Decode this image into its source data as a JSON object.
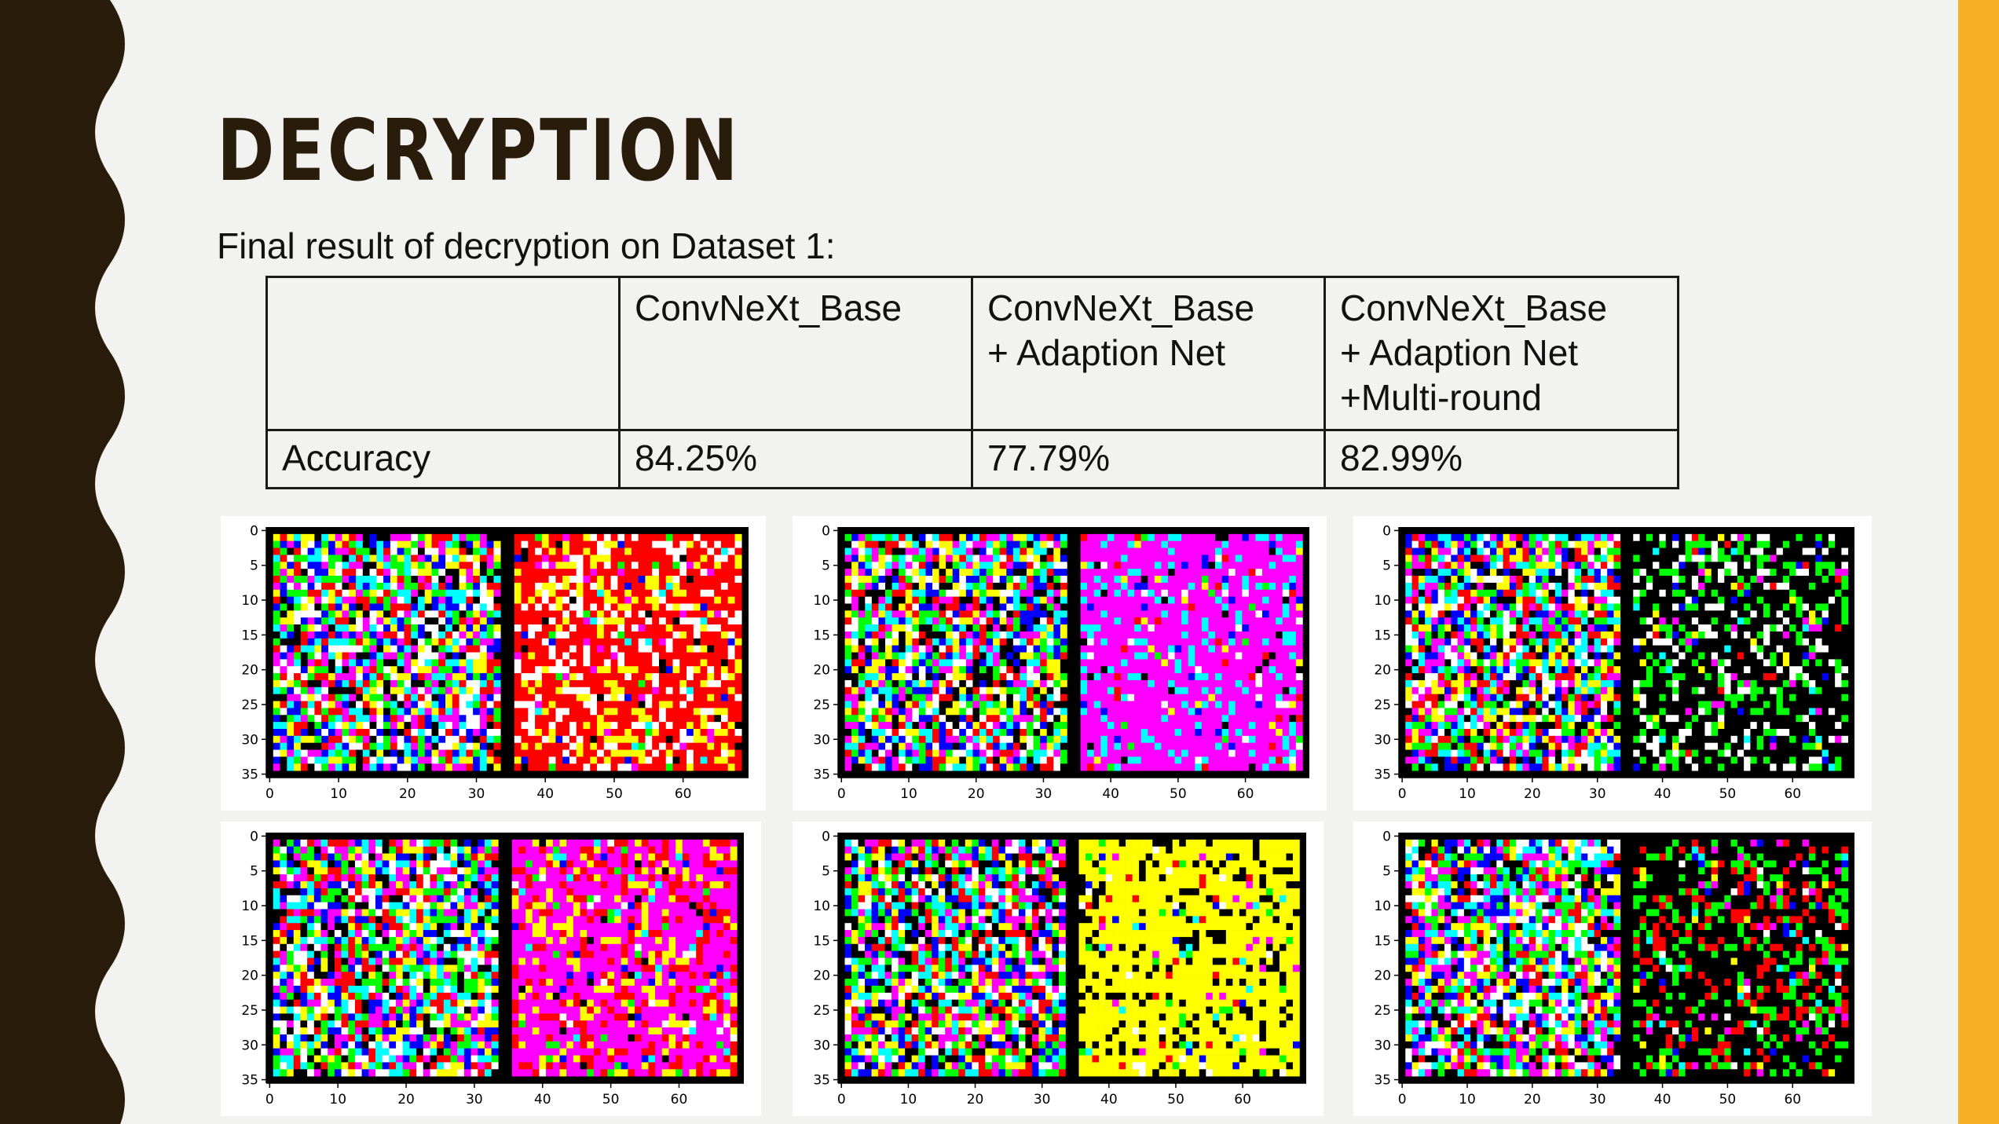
{
  "slide": {
    "title": "DECRYPTION",
    "subtitle": "Final result of decryption on Dataset 1:",
    "colors": {
      "background": "#f2f2f0",
      "wave": "#2a1c0b",
      "accent": "#f7b025",
      "title": "#2a1c0b"
    }
  },
  "table": {
    "headers": [
      {
        "lines": [
          ""
        ]
      },
      {
        "lines": [
          "ConvNeXt_Base"
        ]
      },
      {
        "lines": [
          "ConvNeXt_Base",
          "+ Adaption Net"
        ]
      },
      {
        "lines": [
          "ConvNeXt_Base",
          "+ Adaption Net",
          "+Multi-round"
        ]
      }
    ],
    "row": {
      "label": "Accuracy",
      "values": [
        "84.25%",
        "77.79%",
        "82.99%"
      ]
    }
  },
  "plots": {
    "y_ticks": [
      "0",
      "5",
      "10",
      "15",
      "20",
      "25",
      "30",
      "35"
    ],
    "x_ticks": [
      "0",
      "10",
      "20",
      "30",
      "40",
      "50",
      "60"
    ],
    "panel_colors": [
      "#ffffff",
      "#000000",
      "#ff0000",
      "#00ff00",
      "#0000ff",
      "#ffff00",
      "#ff00ff",
      "#00ffff"
    ],
    "descriptions": [
      "encrypted-vs-decrypted-red-white",
      "encrypted-vs-decrypted-magenta",
      "encrypted-vs-decrypted-black-mixed",
      "encrypted-vs-decrypted-magenta-red",
      "encrypted-vs-decrypted-yellow",
      "encrypted-vs-decrypted-dark-mixed"
    ]
  }
}
